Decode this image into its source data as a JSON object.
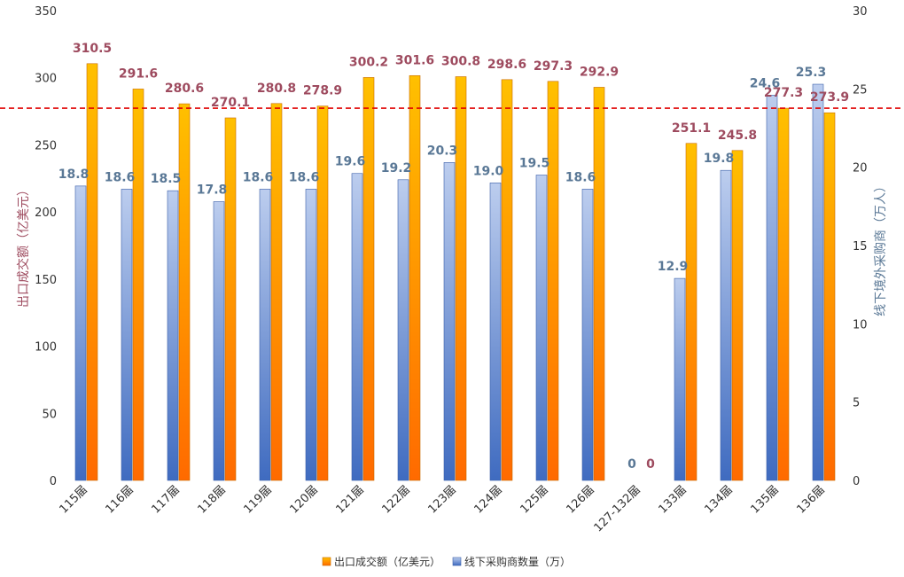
{
  "chart_data": {
    "type": "bar",
    "categories": [
      "115届",
      "116届",
      "117届",
      "118届",
      "119届",
      "120届",
      "121届",
      "122届",
      "123届",
      "124届",
      "125届",
      "126届",
      "127-132届",
      "133届",
      "134届",
      "135届",
      "136届"
    ],
    "series": [
      {
        "name": "出口成交额（亿美元）",
        "axis": "left",
        "color": "#ff8c00",
        "values": [
          310.5,
          291.6,
          280.6,
          270.1,
          280.8,
          278.9,
          300.2,
          301.6,
          300.8,
          298.6,
          297.3,
          292.9,
          0,
          251.1,
          245.8,
          277.3,
          273.9
        ],
        "labels": [
          "310.5",
          "291.6",
          "280.6",
          "270.1",
          "280.8",
          "278.9",
          "300.2",
          "301.6",
          "300.8",
          "298.6",
          "297.3",
          "292.9",
          "0",
          "251.1",
          "245.8",
          "277.3",
          "273.9"
        ]
      },
      {
        "name": "线下采购商数量（万）",
        "axis": "right",
        "color": "#4472c4",
        "values": [
          18.8,
          18.6,
          18.5,
          17.8,
          18.6,
          18.6,
          19.6,
          19.2,
          20.3,
          19.0,
          19.5,
          18.6,
          0,
          12.9,
          19.8,
          24.6,
          25.3
        ],
        "labels": [
          "18.8",
          "18.6",
          "18.5",
          "17.8",
          "18.6",
          "18.6",
          "19.6",
          "19.2",
          "20.3",
          "19.0",
          "19.5",
          "18.6",
          "0",
          "12.9",
          "19.8",
          "24.6",
          "25.3"
        ]
      }
    ],
    "y_left": {
      "label": "出口成交额（亿美元）",
      "range": [
        0,
        350
      ],
      "ticks": [
        "0",
        "50",
        "100",
        "150",
        "200",
        "250",
        "300",
        "350"
      ]
    },
    "y_right": {
      "label": "线下境外采购商（万人）",
      "range": [
        0,
        30
      ],
      "ticks": [
        "0",
        "5",
        "10",
        "15",
        "20",
        "25",
        "30"
      ]
    },
    "reference_line": {
      "axis": "left",
      "value": 277.3,
      "color": "#e00000",
      "style": "dashed"
    },
    "legend_position": "bottom",
    "grid": false
  }
}
